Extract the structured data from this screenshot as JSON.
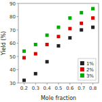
{
  "chart_data": {
    "type": "scatter",
    "x": [
      0.2,
      0.3,
      0.4,
      0.5,
      0.6,
      0.7,
      0.8
    ],
    "series": [
      {
        "name": "1%",
        "color": "#222222",
        "values": [
          32,
          37,
          46,
          58,
          64,
          70,
          72
        ]
      },
      {
        "name": "2%",
        "color": "#dd0000",
        "values": [
          49,
          52,
          59,
          65,
          71,
          75,
          79
        ]
      },
      {
        "name": "3%",
        "color": "#00aa00",
        "values": [
          54,
          59,
          66,
          72,
          79,
          83,
          86
        ]
      }
    ],
    "marker": "square",
    "xlabel": "Mole fraction",
    "ylabel": "Yield (%)",
    "xlim": [
      0.15,
      0.85
    ],
    "ylim": [
      30,
      90
    ],
    "xticks": [
      0.2,
      0.3,
      0.4,
      0.5,
      0.6,
      0.7,
      0.8
    ],
    "yticks": [
      30,
      40,
      50,
      60,
      70,
      80,
      90
    ],
    "legend": "lower right"
  }
}
